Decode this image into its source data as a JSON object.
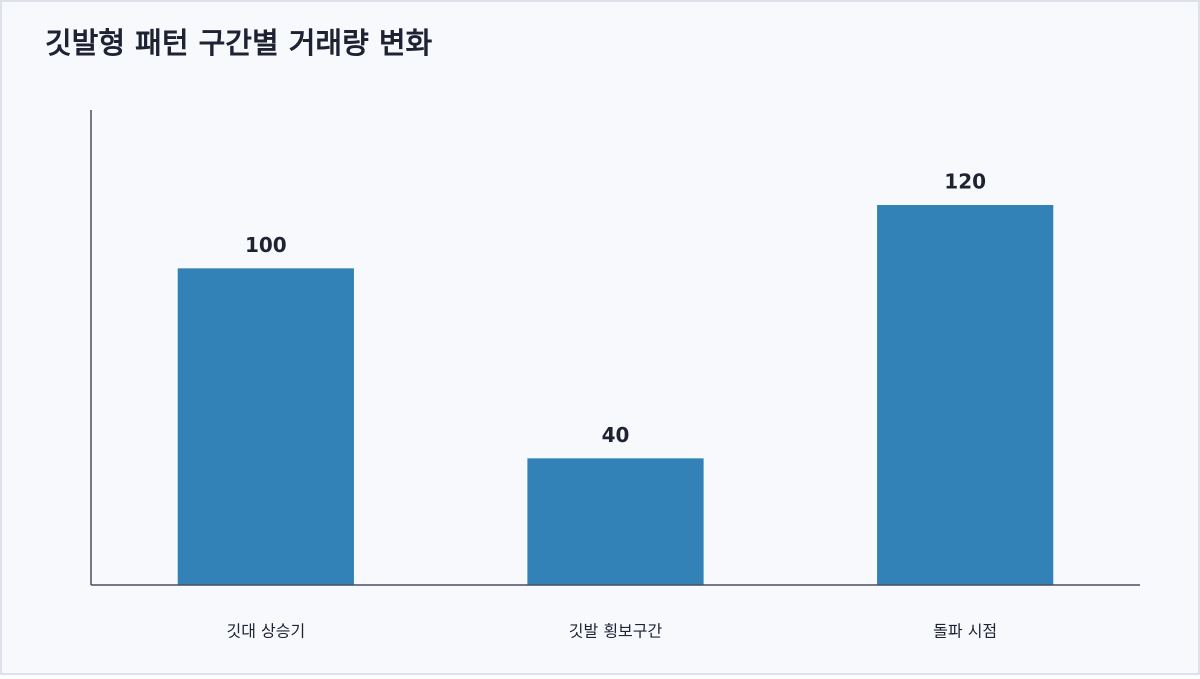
{
  "chart_data": {
    "type": "bar",
    "title": "깃발형 패턴 구간별 거래량 변화",
    "categories": [
      "깃대 상승기",
      "깃발 횡보구간",
      "돌파 시점"
    ],
    "values": [
      100,
      40,
      120
    ],
    "color": "#3282b8",
    "ylim": [
      0,
      150
    ]
  }
}
